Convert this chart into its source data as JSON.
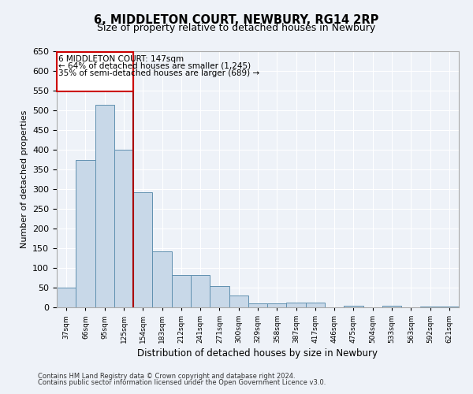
{
  "title": "6, MIDDLETON COURT, NEWBURY, RG14 2RP",
  "subtitle": "Size of property relative to detached houses in Newbury",
  "xlabel": "Distribution of detached houses by size in Newbury",
  "ylabel": "Number of detached properties",
  "annotation_line1": "6 MIDDLETON COURT: 147sqm",
  "annotation_line2": "← 64% of detached houses are smaller (1,245)",
  "annotation_line3": "35% of semi-detached houses are larger (689) →",
  "footnote1": "Contains HM Land Registry data © Crown copyright and database right 2024.",
  "footnote2": "Contains public sector information licensed under the Open Government Licence v3.0.",
  "categories": [
    "37sqm",
    "66sqm",
    "95sqm",
    "125sqm",
    "154sqm",
    "183sqm",
    "212sqm",
    "241sqm",
    "271sqm",
    "300sqm",
    "329sqm",
    "358sqm",
    "387sqm",
    "417sqm",
    "446sqm",
    "475sqm",
    "504sqm",
    "533sqm",
    "563sqm",
    "592sqm",
    "621sqm"
  ],
  "values": [
    50,
    375,
    515,
    400,
    293,
    143,
    82,
    82,
    55,
    30,
    10,
    10,
    12,
    13,
    0,
    5,
    0,
    5,
    0,
    3,
    3
  ],
  "bar_color": "#c8d8e8",
  "bar_edge_color": "#6090b0",
  "vline_x_index": 3.5,
  "vline_color": "#aa0000",
  "annotation_box_color": "#cc0000",
  "background_color": "#eef2f8",
  "ylim": [
    0,
    650
  ],
  "yticks": [
    0,
    50,
    100,
    150,
    200,
    250,
    300,
    350,
    400,
    450,
    500,
    550,
    600,
    650
  ]
}
